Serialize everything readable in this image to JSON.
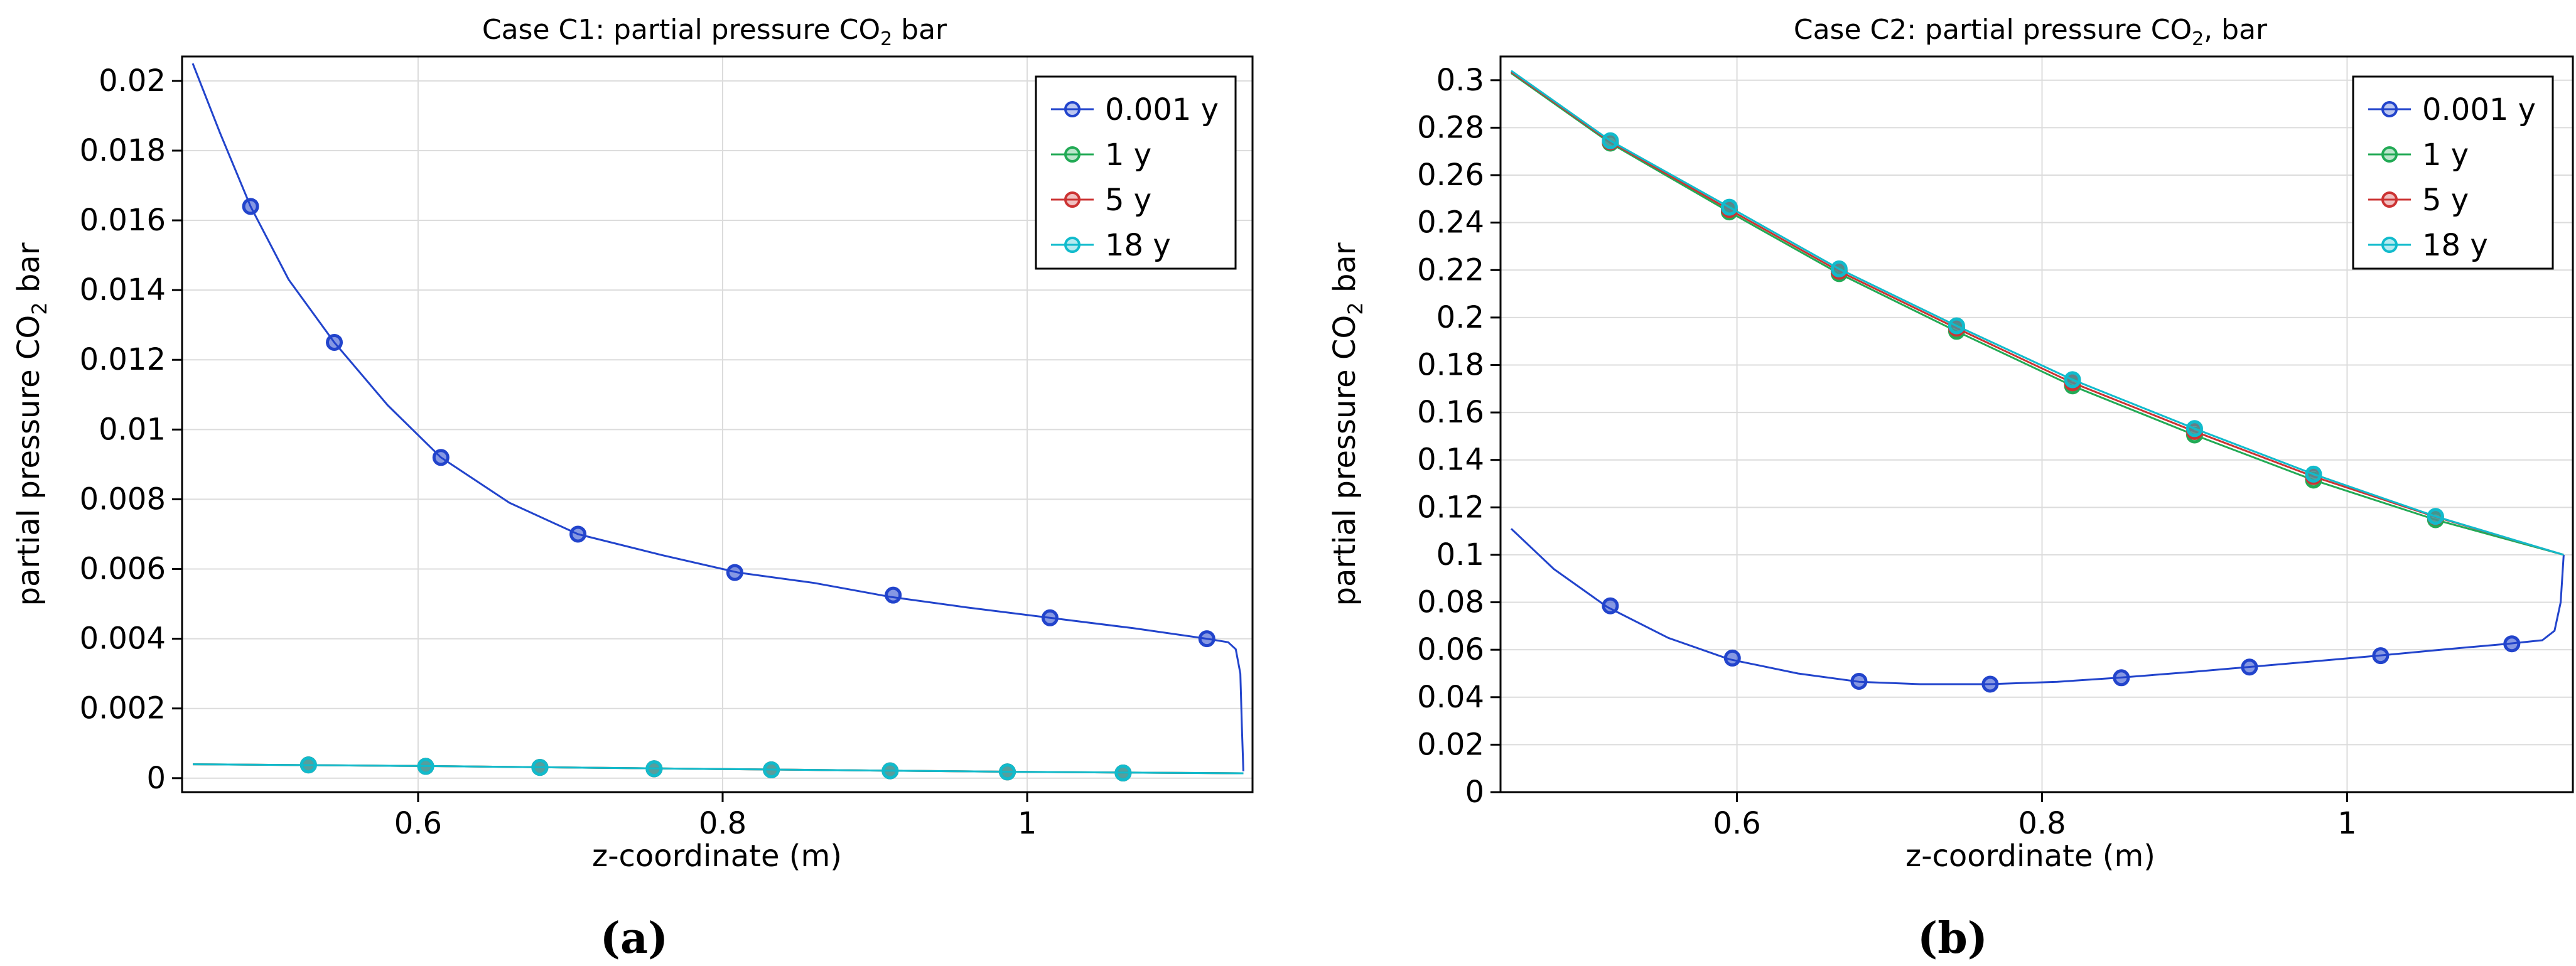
{
  "chart_data": [
    {
      "type": "line",
      "panel_label": "(a)",
      "title": {
        "main": "Case C1: partial pressure CO",
        "sub": "2",
        "tail": " bar"
      },
      "xlabel": "z-coordinate (m)",
      "ylabel": {
        "main": "partial pressure CO",
        "sub": "2",
        "tail": " bar"
      },
      "xlim": [
        0.445,
        1.148
      ],
      "ylim": [
        -0.0004,
        0.0207
      ],
      "xticks": [
        0.6,
        0.8,
        1
      ],
      "xtick_labels": [
        "0.6",
        "0.8",
        "1"
      ],
      "yticks": [
        0,
        0.002,
        0.004,
        0.006,
        0.008,
        0.01,
        0.012,
        0.014,
        0.016,
        0.018,
        0.02
      ],
      "ytick_labels": [
        "0",
        "0.002",
        "0.004",
        "0.006",
        "0.008",
        "0.01",
        "0.012",
        "0.014",
        "0.016",
        "0.018",
        "0.02"
      ],
      "grid": true,
      "legend": "top-right",
      "series": [
        {
          "name": "0.001 y",
          "color": "#2244cc",
          "x": [
            0.452,
            0.47,
            0.49,
            0.515,
            0.545,
            0.58,
            0.615,
            0.66,
            0.705,
            0.76,
            0.81,
            0.86,
            0.91,
            0.96,
            1.015,
            1.07,
            1.118,
            1.132,
            1.137,
            1.14,
            1.141,
            1.142
          ],
          "y": [
            0.0205,
            0.0185,
            0.0164,
            0.0143,
            0.0125,
            0.0107,
            0.0092,
            0.0079,
            0.007,
            0.0064,
            0.0059,
            0.0056,
            0.0052,
            0.0049,
            0.0046,
            0.0043,
            0.004,
            0.0039,
            0.0037,
            0.003,
            0.0015,
            0.0002
          ],
          "markers_x": [
            0.49,
            0.545,
            0.615,
            0.705,
            0.808,
            0.912,
            1.015,
            1.118
          ],
          "markers_y": [
            0.0164,
            0.0125,
            0.0092,
            0.007,
            0.0059,
            0.00525,
            0.0046,
            0.004
          ]
        },
        {
          "name": "1 y",
          "color": "#22aa55",
          "x": [
            0.452,
            0.6,
            0.8,
            1.0,
            1.142
          ],
          "y": [
            0.0004,
            0.00035,
            0.00026,
            0.00018,
            0.00014
          ],
          "markers_x": [
            0.528,
            0.605,
            0.68,
            0.755,
            0.832,
            0.91,
            0.987,
            1.063
          ],
          "markers_y": [
            0.00038,
            0.00034,
            0.00031,
            0.00027,
            0.00024,
            0.00021,
            0.00018,
            0.00015
          ]
        },
        {
          "name": "5 y",
          "color": "#cc3333",
          "x": [
            0.452,
            0.6,
            0.8,
            1.0,
            1.142
          ],
          "y": [
            0.0004,
            0.00035,
            0.00026,
            0.00018,
            0.00014
          ],
          "markers_x": [
            0.528,
            0.605,
            0.68,
            0.755,
            0.832,
            0.91,
            0.987,
            1.063
          ],
          "markers_y": [
            0.00038,
            0.00034,
            0.00031,
            0.00027,
            0.00024,
            0.00021,
            0.00018,
            0.00015
          ]
        },
        {
          "name": "18 y",
          "color": "#11bbcc",
          "x": [
            0.452,
            0.6,
            0.8,
            1.0,
            1.142
          ],
          "y": [
            0.0004,
            0.00035,
            0.00026,
            0.00018,
            0.00014
          ],
          "markers_x": [
            0.528,
            0.605,
            0.68,
            0.755,
            0.832,
            0.91,
            0.987,
            1.063
          ],
          "markers_y": [
            0.00038,
            0.00034,
            0.00031,
            0.00027,
            0.00024,
            0.00021,
            0.00018,
            0.00015
          ]
        }
      ]
    },
    {
      "type": "line",
      "panel_label": "(b)",
      "title": {
        "main": "Case C2: partial pressure CO",
        "sub": "2",
        "tail": ", bar"
      },
      "xlabel": "z-coordinate (m)",
      "ylabel": {
        "main": "partial pressure CO",
        "sub": "2",
        "tail": " bar"
      },
      "xlim": [
        0.445,
        1.148
      ],
      "ylim": [
        0,
        0.31
      ],
      "xticks": [
        0.6,
        0.8,
        1
      ],
      "xtick_labels": [
        "0.6",
        "0.8",
        "1"
      ],
      "yticks": [
        0,
        0.02,
        0.04,
        0.06,
        0.08,
        0.1,
        0.12,
        0.14,
        0.16,
        0.18,
        0.2,
        0.22,
        0.24,
        0.26,
        0.28,
        0.3
      ],
      "ytick_labels": [
        "0",
        "0.02",
        "0.04",
        "0.06",
        "0.08",
        "0.1",
        "0.12",
        "0.14",
        "0.16",
        "0.18",
        "0.2",
        "0.22",
        "0.24",
        "0.26",
        "0.28",
        "0.3"
      ],
      "grid": true,
      "legend": "top-right",
      "series": [
        {
          "name": "0.001 y",
          "color": "#2244cc",
          "x": [
            0.452,
            0.48,
            0.515,
            0.555,
            0.595,
            0.64,
            0.68,
            0.72,
            0.765,
            0.81,
            0.85,
            0.895,
            0.935,
            0.98,
            1.02,
            1.065,
            1.105,
            1.128,
            1.136,
            1.14,
            1.142
          ],
          "y": [
            0.111,
            0.094,
            0.078,
            0.065,
            0.056,
            0.05,
            0.0465,
            0.0455,
            0.0455,
            0.0465,
            0.0482,
            0.0505,
            0.0527,
            0.0552,
            0.0575,
            0.0602,
            0.0625,
            0.064,
            0.068,
            0.08,
            0.1
          ],
          "markers_x": [
            0.517,
            0.597,
            0.68,
            0.766,
            0.852,
            0.936,
            1.022,
            1.108
          ],
          "markers_y": [
            0.0785,
            0.0565,
            0.0467,
            0.0455,
            0.0482,
            0.0527,
            0.0575,
            0.0625
          ]
        },
        {
          "name": "1 y",
          "color": "#22aa55",
          "x": [
            0.452,
            0.517,
            0.595,
            0.667,
            0.744,
            0.82,
            0.9,
            0.978,
            1.058,
            1.142
          ],
          "y": [
            0.303,
            0.2735,
            0.2445,
            0.2185,
            0.1942,
            0.1712,
            0.1505,
            0.1315,
            0.1148,
            0.1
          ],
          "markers_x": [
            0.517,
            0.595,
            0.667,
            0.744,
            0.82,
            0.9,
            0.978,
            1.058
          ],
          "markers_y": [
            0.2735,
            0.2445,
            0.2185,
            0.1942,
            0.1712,
            0.1505,
            0.1315,
            0.1148
          ]
        },
        {
          "name": "5 y",
          "color": "#cc3333",
          "x": [
            0.452,
            0.517,
            0.595,
            0.667,
            0.744,
            0.82,
            0.9,
            0.978,
            1.058,
            1.142
          ],
          "y": [
            0.3035,
            0.274,
            0.2455,
            0.2195,
            0.1955,
            0.1725,
            0.152,
            0.133,
            0.116,
            0.1
          ],
          "markers_x": [
            0.517,
            0.595,
            0.667,
            0.744,
            0.82,
            0.9,
            0.978,
            1.058
          ],
          "markers_y": [
            0.274,
            0.2455,
            0.2195,
            0.1955,
            0.1725,
            0.152,
            0.133,
            0.116
          ]
        },
        {
          "name": "18 y",
          "color": "#11bbcc",
          "x": [
            0.452,
            0.517,
            0.595,
            0.667,
            0.744,
            0.82,
            0.9,
            0.978,
            1.058,
            1.142
          ],
          "y": [
            0.304,
            0.2745,
            0.2465,
            0.2205,
            0.1965,
            0.1738,
            0.1532,
            0.134,
            0.1162,
            0.1
          ],
          "markers_x": [
            0.517,
            0.595,
            0.667,
            0.744,
            0.82,
            0.9,
            0.978,
            1.058
          ],
          "markers_y": [
            0.2745,
            0.2465,
            0.2205,
            0.1965,
            0.1738,
            0.1532,
            0.134,
            0.1162
          ]
        }
      ]
    }
  ]
}
